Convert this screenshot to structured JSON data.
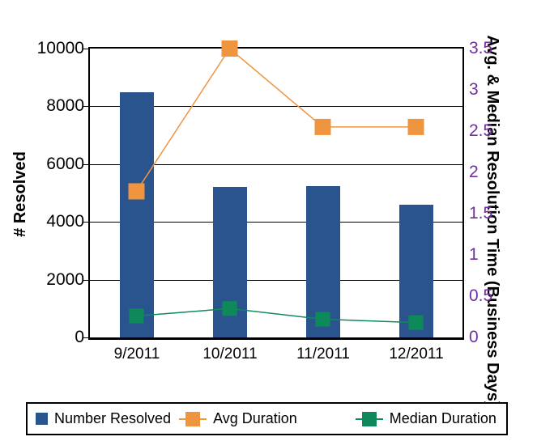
{
  "chart_data": {
    "type": "combo_bar_line",
    "categories": [
      "9/2011",
      "10/2011",
      "11/2011",
      "12/2011"
    ],
    "series": [
      {
        "name": "Number Resolved",
        "type": "bar",
        "axis": "left",
        "color": "#2A548E",
        "values": [
          8500,
          5200,
          5250,
          4600
        ]
      },
      {
        "name": "Avg Duration",
        "type": "line",
        "axis": "right",
        "color": "#F0953F",
        "marker": "square",
        "marker_size": 20,
        "values": [
          1.77,
          3.5,
          2.55,
          2.55
        ]
      },
      {
        "name": "Median Duration",
        "type": "line",
        "axis": "right",
        "color": "#0E8A5A",
        "marker": "square",
        "marker_size": 18,
        "values": [
          0.26,
          0.35,
          0.22,
          0.18
        ]
      }
    ],
    "left_axis": {
      "title": "# Resolved",
      "min": 0,
      "max": 10000,
      "tick_step": 2000,
      "tick_labels": [
        "0",
        "2000",
        "4000",
        "6000",
        "8000",
        "10000"
      ],
      "color": "#000000"
    },
    "right_axis": {
      "title": "Avg. & Median Resolution Time (Business Days)",
      "min": 0,
      "max": 3.5,
      "tick_step": 0.5,
      "tick_labels": [
        "0",
        "0.5",
        "1",
        "1.5",
        "2",
        "2.5",
        "3",
        "3.5"
      ],
      "color": "#7030A0"
    },
    "grid": true,
    "legend": {
      "position": "bottom",
      "border": "#000000",
      "items": [
        "Number Resolved",
        "Avg Duration",
        "Median Duration"
      ]
    }
  }
}
